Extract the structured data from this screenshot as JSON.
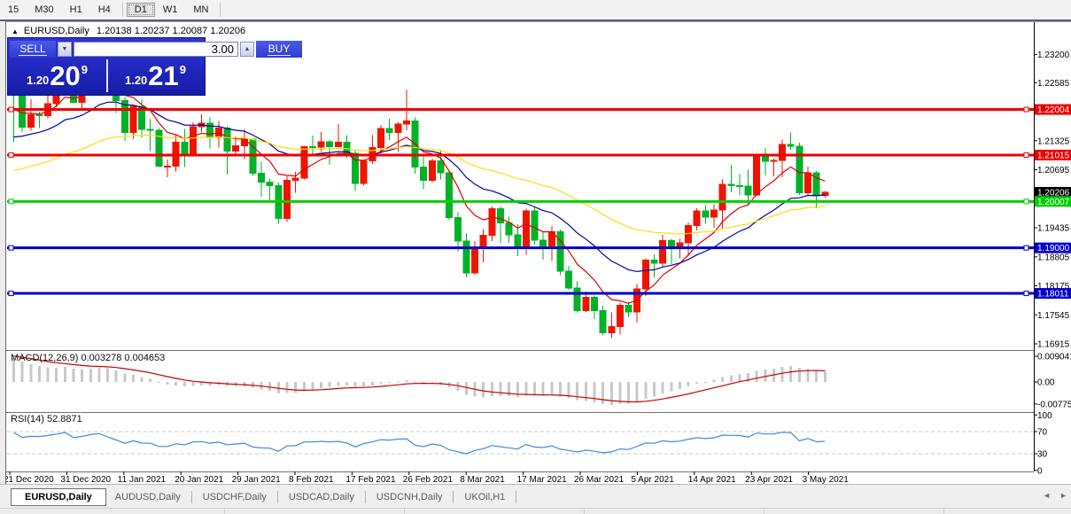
{
  "window": {
    "toolbar": {
      "items": [
        {
          "label": "15",
          "active": false
        },
        {
          "label": "M30",
          "active": false
        },
        {
          "label": "H1",
          "active": false
        },
        {
          "label": "H4",
          "active": false
        },
        {
          "label": "D1",
          "active": true
        },
        {
          "label": "W1",
          "active": false
        },
        {
          "label": "MN",
          "active": false
        }
      ]
    }
  },
  "chart_header": {
    "collapse_icon": "▲",
    "symbol": "EURUSD,Daily",
    "ohlc": "1.20138 1.20237 1.20087 1.20206"
  },
  "trade_panel": {
    "sell_label": "SELL",
    "buy_label": "BUY",
    "volume": "3.00",
    "volume_down_icon": "▼",
    "volume_up_icon": "▲",
    "sell_price": {
      "prefix": "1.20",
      "big": "20",
      "pip": "9"
    },
    "buy_price": {
      "prefix": "1.20",
      "big": "21",
      "pip": "9"
    }
  },
  "chart_data": {
    "type": "candlestick",
    "title": "EURUSD,Daily",
    "last_bar": {
      "open": 1.20138,
      "high": 1.20237,
      "low": 1.20087,
      "close": 1.20206
    },
    "price_range": [
      1.168,
      1.239
    ],
    "candle_up_color": "#EE1500",
    "candle_down_color": "#00B228",
    "price_axis_ticks": [
      {
        "label": "1.23200",
        "value": 1.232
      },
      {
        "label": "1.22585",
        "value": 1.22585
      },
      {
        "label": "1.21325",
        "value": 1.21325
      },
      {
        "label": "1.20695",
        "value": 1.20695
      },
      {
        "label": "1.19435",
        "value": 1.19435
      },
      {
        "label": "1.18805",
        "value": 1.18805
      },
      {
        "label": "1.18175",
        "value": 1.18175
      },
      {
        "label": "1.17545",
        "value": 1.17545
      },
      {
        "label": "1.16915",
        "value": 1.16915
      }
    ],
    "date_axis": [
      "21 Dec 2020",
      "31 Dec 2020",
      "11 Jan 2021",
      "20 Jan 2021",
      "29 Jan 2021",
      "8 Feb 2021",
      "17 Feb 2021",
      "26 Feb 2021",
      "8 Mar 2021",
      "17 Mar 2021",
      "26 Mar 2021",
      "5 Apr 2021",
      "14 Apr 2021",
      "23 Apr 2021",
      "3 May 2021"
    ],
    "candles": [
      [
        1.2246,
        1.2262,
        1.2129,
        1.2241
      ],
      [
        1.2241,
        1.2248,
        1.2151,
        1.2162
      ],
      [
        1.2162,
        1.2223,
        1.2154,
        1.2189
      ],
      [
        1.2189,
        1.2196,
        1.216,
        1.2187
      ],
      [
        1.2187,
        1.225,
        1.2181,
        1.2213
      ],
      [
        1.2213,
        1.2275,
        1.2205,
        1.225
      ],
      [
        1.225,
        1.231,
        1.2248,
        1.2295
      ],
      [
        1.2295,
        1.231,
        1.2214,
        1.2216
      ],
      [
        1.2216,
        1.2309,
        1.22,
        1.2247
      ],
      [
        1.2247,
        1.2307,
        1.2245,
        1.2296
      ],
      [
        1.2296,
        1.2349,
        1.2266,
        1.2327
      ],
      [
        1.2327,
        1.2345,
        1.2245,
        1.2271
      ],
      [
        1.2271,
        1.2285,
        1.2193,
        1.222
      ],
      [
        1.222,
        1.2227,
        1.2132,
        1.215
      ],
      [
        1.215,
        1.221,
        1.2136,
        1.2207
      ],
      [
        1.2207,
        1.2223,
        1.214,
        1.2157
      ],
      [
        1.2157,
        1.218,
        1.211,
        1.2155
      ],
      [
        1.2155,
        1.216,
        1.2075,
        1.2077
      ],
      [
        1.2077,
        1.2092,
        1.2053,
        1.2077
      ],
      [
        1.2077,
        1.2145,
        1.2066,
        1.2129
      ],
      [
        1.2129,
        1.2158,
        1.2075,
        1.2105
      ],
      [
        1.2105,
        1.2173,
        1.2103,
        1.2163
      ],
      [
        1.2163,
        1.219,
        1.2151,
        1.2171
      ],
      [
        1.2171,
        1.2184,
        1.2116,
        1.214
      ],
      [
        1.214,
        1.2175,
        1.2118,
        1.216
      ],
      [
        1.216,
        1.2164,
        1.2059,
        1.211
      ],
      [
        1.211,
        1.2142,
        1.21,
        1.2122
      ],
      [
        1.2122,
        1.2157,
        1.2093,
        1.2136
      ],
      [
        1.2136,
        1.2136,
        1.2056,
        1.2062
      ],
      [
        1.2062,
        1.2087,
        1.2011,
        1.2043
      ],
      [
        1.2043,
        1.205,
        1.2003,
        1.2035
      ],
      [
        1.2035,
        1.2042,
        1.1952,
        1.1964
      ],
      [
        1.1964,
        1.2055,
        1.1956,
        1.2047
      ],
      [
        1.2047,
        1.2065,
        1.202,
        1.2051
      ],
      [
        1.2051,
        1.2122,
        1.2048,
        1.212
      ],
      [
        1.212,
        1.2144,
        1.2103,
        1.2119
      ],
      [
        1.2119,
        1.2151,
        1.2109,
        1.213
      ],
      [
        1.213,
        1.2134,
        1.208,
        1.212
      ],
      [
        1.212,
        1.2169,
        1.2119,
        1.2129
      ],
      [
        1.2129,
        1.2145,
        1.2095,
        1.2105
      ],
      [
        1.2105,
        1.2113,
        1.2023,
        1.204
      ],
      [
        1.204,
        1.209,
        1.2036,
        1.2089
      ],
      [
        1.2089,
        1.2145,
        1.2082,
        1.2118
      ],
      [
        1.2118,
        1.2167,
        1.2105,
        1.2159
      ],
      [
        1.2159,
        1.218,
        1.2134,
        1.215
      ],
      [
        1.215,
        1.2174,
        1.2109,
        1.2169
      ],
      [
        1.2169,
        1.2243,
        1.2155,
        1.2175
      ],
      [
        1.2175,
        1.2183,
        1.2061,
        1.2075
      ],
      [
        1.2075,
        1.2101,
        1.2027,
        1.2047
      ],
      [
        1.2047,
        1.2094,
        1.2043,
        1.2089
      ],
      [
        1.2089,
        1.2113,
        1.2048,
        1.2063
      ],
      [
        1.2063,
        1.207,
        1.196,
        1.1966
      ],
      [
        1.1966,
        1.1978,
        1.1892,
        1.1915
      ],
      [
        1.1915,
        1.1932,
        1.1836,
        1.1845
      ],
      [
        1.1845,
        1.1915,
        1.1843,
        1.1899
      ],
      [
        1.1899,
        1.1941,
        1.1869,
        1.1927
      ],
      [
        1.1927,
        1.199,
        1.1915,
        1.1985
      ],
      [
        1.1985,
        1.199,
        1.191,
        1.1954
      ],
      [
        1.1954,
        1.1968,
        1.1911,
        1.1928
      ],
      [
        1.1928,
        1.1951,
        1.1882,
        1.1899
      ],
      [
        1.1899,
        1.1985,
        1.1885,
        1.198
      ],
      [
        1.198,
        1.1989,
        1.1906,
        1.1917
      ],
      [
        1.1917,
        1.1936,
        1.1874,
        1.1904
      ],
      [
        1.1904,
        1.1947,
        1.1871,
        1.1935
      ],
      [
        1.1935,
        1.194,
        1.1841,
        1.1849
      ],
      [
        1.1849,
        1.1861,
        1.1809,
        1.1813
      ],
      [
        1.1813,
        1.1827,
        1.176,
        1.1764
      ],
      [
        1.1764,
        1.1805,
        1.1761,
        1.1793
      ],
      [
        1.1793,
        1.1796,
        1.1745,
        1.1764
      ],
      [
        1.1764,
        1.1774,
        1.171,
        1.1716
      ],
      [
        1.1716,
        1.176,
        1.1704,
        1.1729
      ],
      [
        1.1729,
        1.1781,
        1.1712,
        1.1775
      ],
      [
        1.1775,
        1.1782,
        1.1749,
        1.1761
      ],
      [
        1.1761,
        1.1821,
        1.1738,
        1.1811
      ],
      [
        1.1811,
        1.1877,
        1.1795,
        1.1873
      ],
      [
        1.1873,
        1.1886,
        1.1836,
        1.1867
      ],
      [
        1.1867,
        1.1928,
        1.186,
        1.1916
      ],
      [
        1.1916,
        1.192,
        1.1865,
        1.1899
      ],
      [
        1.1899,
        1.192,
        1.1877,
        1.1911
      ],
      [
        1.1911,
        1.1955,
        1.1881,
        1.1948
      ],
      [
        1.1948,
        1.1986,
        1.1938,
        1.198
      ],
      [
        1.198,
        1.1992,
        1.1952,
        1.1967
      ],
      [
        1.1967,
        1.1995,
        1.1944,
        1.1982
      ],
      [
        1.1982,
        1.2048,
        1.1942,
        1.2038
      ],
      [
        1.2038,
        1.208,
        1.2021,
        1.2035
      ],
      [
        1.2035,
        1.206,
        1.2014,
        1.2034
      ],
      [
        1.2034,
        1.207,
        1.1993,
        1.2015
      ],
      [
        1.2015,
        1.21,
        1.2012,
        1.2098
      ],
      [
        1.2098,
        1.2117,
        1.2057,
        1.2088
      ],
      [
        1.2088,
        1.2094,
        1.2055,
        1.209
      ],
      [
        1.209,
        1.2135,
        1.2053,
        1.2124
      ],
      [
        1.2124,
        1.215,
        1.2113,
        1.2121
      ],
      [
        1.2121,
        1.2128,
        1.2015,
        1.202
      ],
      [
        1.202,
        1.2076,
        1.2013,
        1.2063
      ],
      [
        1.2063,
        1.2067,
        1.1986,
        1.2013
      ],
      [
        1.20138,
        1.20237,
        1.20087,
        1.20206
      ]
    ],
    "horizontal_lines": [
      {
        "price": 1.22004,
        "label": "1.22004",
        "color": "#EE0000"
      },
      {
        "price": 1.21015,
        "label": "1.21015",
        "color": "#EE0000"
      },
      {
        "price": 1.20007,
        "label": "1.20007",
        "color": "#00CF00"
      },
      {
        "price": 1.19,
        "label": "1.19000",
        "color": "#0000C8"
      },
      {
        "price": 1.18011,
        "label": "1.18011",
        "color": "#0000C8"
      }
    ],
    "current_price_marker": {
      "price": 1.20206,
      "label": "1.20206",
      "color": "#000000"
    },
    "moving_averages": [
      {
        "name": "ma-fast-red",
        "color": "#DF0000",
        "period": 8,
        "seed": 1.219
      },
      {
        "name": "ma-mid-blue",
        "color": "#0000A0",
        "period": 20,
        "seed": 1.213
      },
      {
        "name": "ma-slow-yellow",
        "color": "#FFDF00",
        "period": 45,
        "seed": 1.206
      }
    ],
    "macd": {
      "label": "MACD(12,26,9) 0.003278 0.004653",
      "fast_period": 12,
      "slow_period": 26,
      "signal_period": 9,
      "last_value": 0.003278,
      "last_signal": 0.004653,
      "scale": [
        {
          "label": "0.009041",
          "value": 0.009041
        },
        {
          "label": "0.00",
          "value": 0
        },
        {
          "label": "-0.00775",
          "value": -0.00775
        }
      ],
      "histogram_color": "#C8C8C8",
      "signal_color": "#C80000",
      "seed_fast_offset": 0.0003,
      "seed_slow_offset": 0.0093,
      "seed_signal": 0.0093
    },
    "rsi": {
      "label": "RSI(14) 52.8871",
      "period": 14,
      "last_value": 52.8871,
      "scale": [
        {
          "label": "100",
          "value": 100
        },
        {
          "label": "70",
          "value": 70
        },
        {
          "label": "30",
          "value": 30
        },
        {
          "label": "0",
          "value": 0
        }
      ],
      "levels": [
        70,
        30
      ],
      "color": "#3C8CDC",
      "level_color": "#C8C8C8",
      "seed_gain": 0.0028,
      "seed_loss": 0.0013
    }
  },
  "tabs": {
    "items": [
      {
        "label": "EURUSD,Daily",
        "active": true
      },
      {
        "label": "AUDUSD,Daily",
        "active": false
      },
      {
        "label": "USDCHF,Daily",
        "active": false
      },
      {
        "label": "USDCAD,Daily",
        "active": false
      },
      {
        "label": "USDCNH,Daily",
        "active": false
      },
      {
        "label": "UKOil,H1",
        "active": false
      }
    ],
    "scroll_left_icon": "◄",
    "scroll_right_icon": "►"
  }
}
